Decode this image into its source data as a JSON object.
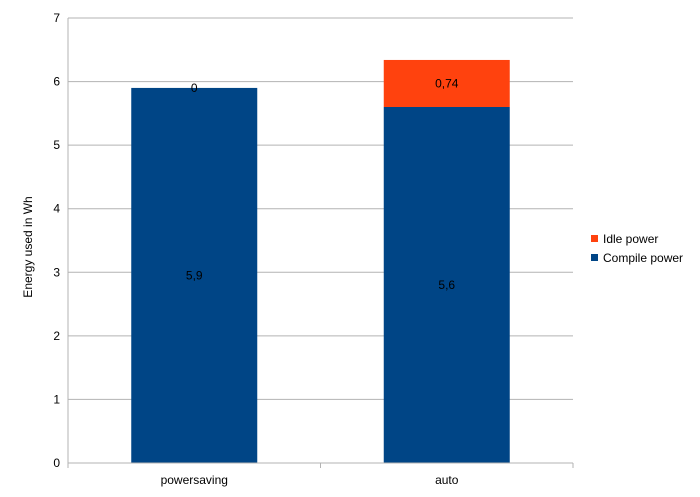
{
  "chart_data": {
    "type": "bar",
    "stacked": true,
    "categories": [
      "powersaving",
      "auto"
    ],
    "series": [
      {
        "name": "Compile power",
        "values": [
          5.9,
          5.6
        ],
        "labels": [
          "5,9",
          "5,6"
        ],
        "color": "#004586"
      },
      {
        "name": "Idle power",
        "values": [
          0,
          0.74
        ],
        "labels": [
          "0",
          "0,74"
        ],
        "color": "#ff420e"
      }
    ],
    "ylabel": "Energy used in Wh",
    "xlabel": "",
    "title": "",
    "ylim": [
      0,
      7
    ],
    "yticks": [
      "0",
      "1",
      "2",
      "3",
      "4",
      "5",
      "6",
      "7"
    ],
    "grid": true,
    "legend": {
      "position": "right",
      "order": [
        "Idle power",
        "Compile power"
      ]
    }
  }
}
